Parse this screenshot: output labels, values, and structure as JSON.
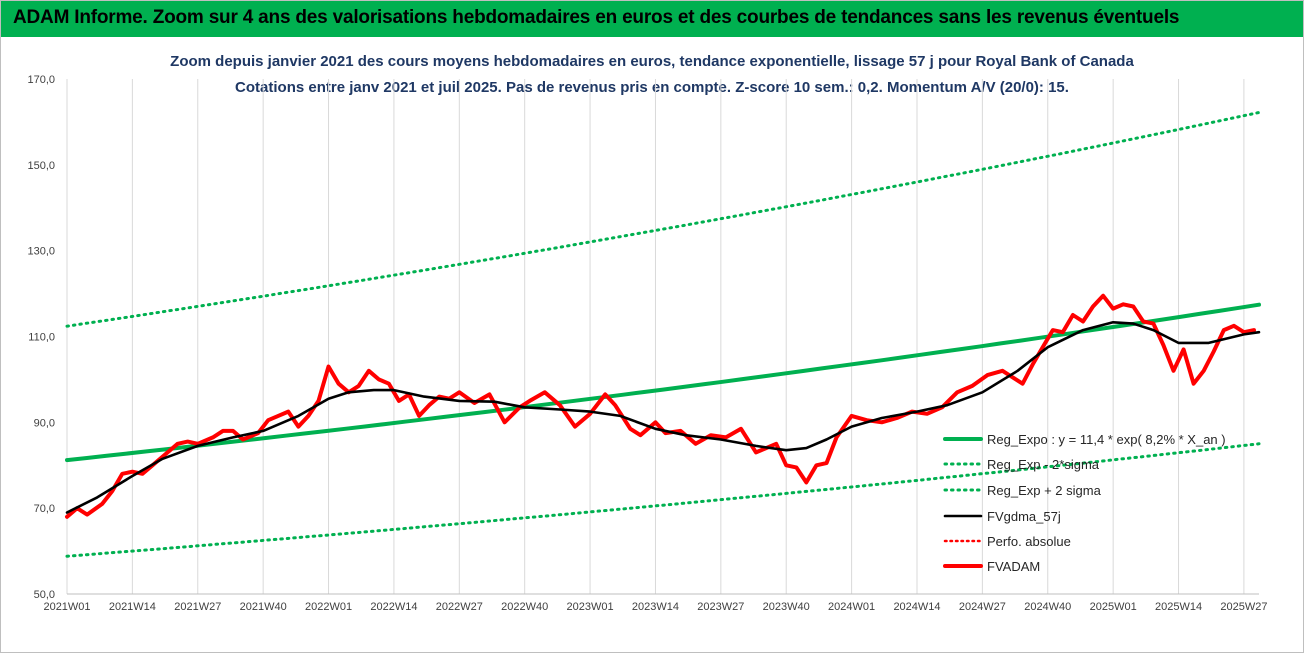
{
  "header": {
    "banner": "ADAM Informe. Zoom sur 4 ans des valorisations hebdomadaires en euros et des courbes de tendances sans les revenus éventuels",
    "banner_color": "#00b050"
  },
  "chart_data": {
    "type": "line",
    "title": "Zoom depuis janvier 2021 des cours moyens hebdomadaires en euros, tendance exponentielle, lissage 57 j pour Royal Bank of Canada",
    "subtitle": "Cotations entre janv 2021 et juil 2025. Pas de revenus pris en compte. Z-score 10 sem.: 0,2. Momentum A/V (20/0): 15.",
    "ylim": [
      50,
      170
    ],
    "yticks": [
      "50,0",
      "70,0",
      "90,0",
      "110,0",
      "130,0",
      "150,0",
      "170,0"
    ],
    "ytick_values": [
      50,
      70,
      90,
      110,
      130,
      150,
      170
    ],
    "xticks": [
      "2021W01",
      "2021W14",
      "2021W27",
      "2021W40",
      "2022W01",
      "2022W14",
      "2022W27",
      "2022W40",
      "2023W01",
      "2023W14",
      "2023W27",
      "2023W40",
      "2024W01",
      "2024W14",
      "2024W27",
      "2024W40",
      "2025W01",
      "2025W14",
      "2025W27"
    ],
    "grid": "vertical",
    "legend_position": "bottom-right",
    "series": [
      {
        "name": "Reg_Expo : y = 11,4 * exp( 8,2% *  X_an )",
        "color": "#00b050",
        "style": "solid",
        "x": [
          "2021W01",
          "2025W30"
        ],
        "values": [
          81.2,
          117.4
        ]
      },
      {
        "name": "Reg_Exp - 2*sigma",
        "color": "#00b050",
        "style": "dotted",
        "x": [
          "2021W01",
          "2025W30"
        ],
        "values": [
          58.8,
          85.0
        ]
      },
      {
        "name": "Reg_Exp + 2 sigma",
        "color": "#00b050",
        "style": "dotted",
        "x": [
          "2021W01",
          "2025W30"
        ],
        "values": [
          112.4,
          162.2
        ]
      },
      {
        "name": "FVgdma_57j",
        "color": "#000000",
        "style": "solid",
        "x": [
          "2021W01",
          "2021W07",
          "2021W14",
          "2021W20",
          "2021W27",
          "2021W34",
          "2021W40",
          "2021W47",
          "2022W01",
          "2022W05",
          "2022W10",
          "2022W14",
          "2022W20",
          "2022W27",
          "2022W34",
          "2022W40",
          "2022W47",
          "2023W01",
          "2023W07",
          "2023W14",
          "2023W20",
          "2023W27",
          "2023W34",
          "2023W40",
          "2023W44",
          "2023W48",
          "2024W01",
          "2024W07",
          "2024W14",
          "2024W20",
          "2024W27",
          "2024W34",
          "2024W40",
          "2024W47",
          "2025W01",
          "2025W05",
          "2025W09",
          "2025W14",
          "2025W20",
          "2025W27",
          "2025W30"
        ],
        "values": [
          69.0,
          72.5,
          77.5,
          81.5,
          84.5,
          86.5,
          88.0,
          91.5,
          95.5,
          97.0,
          97.5,
          97.5,
          96.0,
          95.0,
          94.8,
          93.5,
          93.0,
          92.5,
          91.5,
          88.5,
          87.0,
          86.0,
          84.5,
          83.5,
          84.0,
          86.0,
          89.0,
          91.0,
          92.5,
          94.0,
          97.0,
          102.0,
          107.5,
          111.5,
          113.3,
          113.0,
          111.5,
          108.5,
          108.5,
          110.5,
          111.0
        ]
      },
      {
        "name": "Perfo. absolue",
        "color": "#ff0000",
        "style": "dotted",
        "x": [],
        "values": []
      },
      {
        "name": "FVADAM",
        "color": "#ff0000",
        "style": "solid",
        "x": [
          "2021W01",
          "2021W03",
          "2021W05",
          "2021W08",
          "2021W10",
          "2021W12",
          "2021W14",
          "2021W16",
          "2021W18",
          "2021W21",
          "2021W23",
          "2021W25",
          "2021W27",
          "2021W30",
          "2021W32",
          "2021W34",
          "2021W36",
          "2021W39",
          "2021W41",
          "2021W43",
          "2021W45",
          "2021W47",
          "2021W49",
          "2021W51",
          "2022W01",
          "2022W03",
          "2022W05",
          "2022W07",
          "2022W09",
          "2022W11",
          "2022W13",
          "2022W15",
          "2022W17",
          "2022W19",
          "2022W21",
          "2022W23",
          "2022W25",
          "2022W27",
          "2022W30",
          "2022W33",
          "2022W36",
          "2022W39",
          "2022W41",
          "2022W44",
          "2022W47",
          "2022W50",
          "2023W01",
          "2023W04",
          "2023W06",
          "2023W09",
          "2023W11",
          "2023W14",
          "2023W16",
          "2023W19",
          "2023W22",
          "2023W25",
          "2023W28",
          "2023W31",
          "2023W34",
          "2023W36",
          "2023W38",
          "2023W40",
          "2023W42",
          "2023W44",
          "2023W46",
          "2023W48",
          "2023W50",
          "2024W01",
          "2024W04",
          "2024W07",
          "2024W10",
          "2024W13",
          "2024W16",
          "2024W19",
          "2024W22",
          "2024W25",
          "2024W28",
          "2024W31",
          "2024W33",
          "2024W35",
          "2024W37",
          "2024W39",
          "2024W41",
          "2024W43",
          "2024W45",
          "2024W47",
          "2024W49",
          "2024W51",
          "2025W01",
          "2025W03",
          "2025W05",
          "2025W07",
          "2025W09",
          "2025W11",
          "2025W13",
          "2025W15",
          "2025W17",
          "2025W19",
          "2025W21",
          "2025W23",
          "2025W25",
          "2025W27",
          "2025W29"
        ],
        "values": [
          68.0,
          70.0,
          68.5,
          71.0,
          74.0,
          78.0,
          78.5,
          78.0,
          80.0,
          83.0,
          85.0,
          85.5,
          85.0,
          86.5,
          88.0,
          88.0,
          86.0,
          87.5,
          90.5,
          91.5,
          92.5,
          89.0,
          91.5,
          95.0,
          103.0,
          99.0,
          97.0,
          98.5,
          102.0,
          100.0,
          99.0,
          95.0,
          96.5,
          91.5,
          94.0,
          96.0,
          95.5,
          97.0,
          94.5,
          96.5,
          90.0,
          93.5,
          95.0,
          97.0,
          94.0,
          89.0,
          92.0,
          96.5,
          94.0,
          88.5,
          87.0,
          90.0,
          87.5,
          88.0,
          85.0,
          87.0,
          86.5,
          88.5,
          83.0,
          84.0,
          85.0,
          80.0,
          79.5,
          76.0,
          80.0,
          80.5,
          86.5,
          91.5,
          90.5,
          90.0,
          91.0,
          92.5,
          92.0,
          93.5,
          97.0,
          98.5,
          101.0,
          102.0,
          100.5,
          99.0,
          103.5,
          107.5,
          111.5,
          111.0,
          115.0,
          113.5,
          117.0,
          119.5,
          116.5,
          117.5,
          117.0,
          113.5,
          113.0,
          108.0,
          102.0,
          107.0,
          99.0,
          102.0,
          106.5,
          111.5,
          112.5,
          111.0,
          111.5
        ]
      }
    ]
  }
}
